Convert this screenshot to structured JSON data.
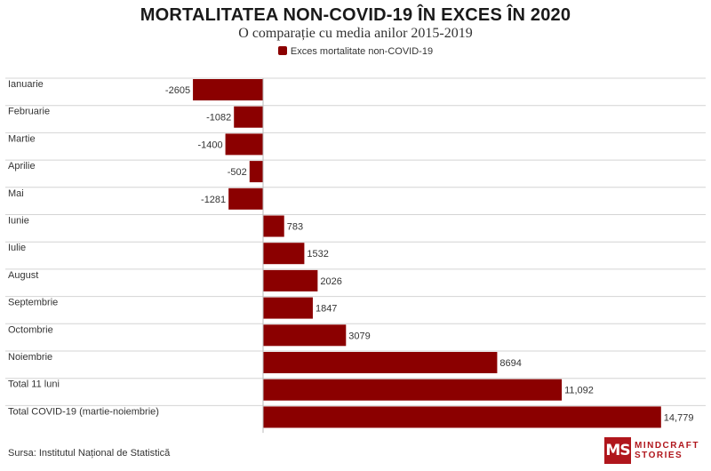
{
  "chart_data": {
    "type": "bar",
    "orientation": "horizontal",
    "title": "MORTALITATEA NON-COVID-19 ÎN EXCES ÎN 2020",
    "subtitle": "O comparație cu media anilor 2015-2019",
    "categories": [
      "Ianuarie",
      "Februarie",
      "Martie",
      "Aprilie",
      "Mai",
      "Iunie",
      "Iulie",
      "August",
      "Septembrie",
      "Octombrie",
      "Noiembrie",
      "Total 11 luni",
      "Total COVID-19 (martie-noiembrie)"
    ],
    "series": [
      {
        "name": "Exces mortalitate non-COVID-19",
        "values": [
          -2605,
          -1082,
          -1400,
          -502,
          -1281,
          783,
          1532,
          2026,
          1847,
          3079,
          8694,
          11092,
          14779
        ],
        "labels": [
          "-2605",
          "-1082",
          "-1400",
          "-502",
          "-1281",
          "783",
          "1532",
          "2026",
          "1847",
          "3079",
          "8694",
          "11,092",
          "14,779"
        ]
      }
    ],
    "colors": {
      "bar": "#8b0000"
    },
    "legend": "top",
    "grid": false
  },
  "source": "Sursa: Institutul Național de Statistică",
  "logo": {
    "mark": "MS",
    "line1": "MINDCRAFT",
    "line2": "STORIES",
    "color": "#b0161c"
  }
}
